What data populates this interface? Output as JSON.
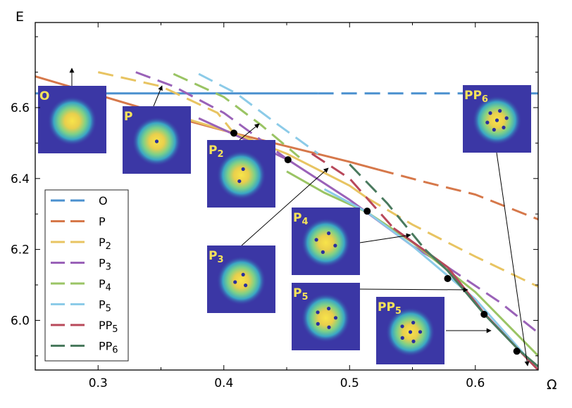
{
  "chart_data": {
    "type": "line",
    "xlabel": "Ω",
    "ylabel": "E",
    "xlim": [
      0.25,
      0.65
    ],
    "ylim": [
      5.86,
      6.84
    ],
    "xticks": [
      "0.3",
      "0.4",
      "0.5",
      "0.6"
    ],
    "xtick_values": [
      0.3,
      0.4,
      0.5,
      0.6
    ],
    "yticks": [
      "6.0",
      "6.2",
      "6.4",
      "6.6"
    ],
    "ytick_values": [
      6.0,
      6.2,
      6.4,
      6.6
    ],
    "legend_position": "lower-left",
    "series": [
      {
        "id": "O",
        "label": "O",
        "sub": "",
        "color": "#4a90cf",
        "solid": [
          [
            0.25,
            6.64
          ],
          [
            0.475,
            6.64
          ]
        ],
        "dashed": [
          [
            0.475,
            6.64
          ],
          [
            0.65,
            6.64
          ]
        ]
      },
      {
        "id": "P",
        "label": "P",
        "sub": "",
        "color": "#d6784a",
        "solid": [
          [
            0.25,
            6.688
          ],
          [
            0.296,
            6.64
          ],
          [
            0.35,
            6.583
          ],
          [
            0.408,
            6.528
          ],
          [
            0.45,
            6.491
          ],
          [
            0.5,
            6.447
          ],
          [
            0.523,
            6.425
          ]
        ],
        "dashed": [
          [
            0.523,
            6.425
          ],
          [
            0.56,
            6.39
          ],
          [
            0.6,
            6.355
          ],
          [
            0.65,
            6.285
          ]
        ]
      },
      {
        "id": "P2",
        "label": "P",
        "sub": "2",
        "color": "#e8c462",
        "solid": [
          [
            0.35,
            6.59
          ],
          [
            0.408,
            6.528
          ],
          [
            0.45,
            6.47
          ],
          [
            0.5,
            6.38
          ],
          [
            0.514,
            6.345
          ]
        ],
        "dashed": [
          [
            0.3,
            6.7
          ],
          [
            0.35,
            6.66
          ],
          [
            0.395,
            6.585
          ],
          [
            0.408,
            6.528
          ]
        ],
        "dashed2": [
          [
            0.514,
            6.345
          ],
          [
            0.55,
            6.27
          ],
          [
            0.6,
            6.18
          ],
          [
            0.65,
            6.095
          ]
        ]
      },
      {
        "id": "P3",
        "label": "P",
        "sub": "3",
        "color": "#9a62b8",
        "solid": [
          [
            0.38,
            6.57
          ],
          [
            0.42,
            6.505
          ],
          [
            0.451,
            6.453
          ],
          [
            0.5,
            6.34
          ],
          [
            0.55,
            6.21
          ],
          [
            0.578,
            6.15
          ]
        ],
        "dashed": [
          [
            0.33,
            6.7
          ],
          [
            0.36,
            6.66
          ],
          [
            0.4,
            6.585
          ],
          [
            0.451,
            6.453
          ]
        ],
        "dashed2": [
          [
            0.578,
            6.15
          ],
          [
            0.62,
            6.05
          ],
          [
            0.65,
            5.965
          ]
        ]
      },
      {
        "id": "P4",
        "label": "P",
        "sub": "4",
        "color": "#9ac464",
        "solid": [
          [
            0.45,
            6.42
          ],
          [
            0.48,
            6.36
          ],
          [
            0.514,
            6.305
          ],
          [
            0.55,
            6.22
          ],
          [
            0.6,
            6.08
          ],
          [
            0.65,
            5.9
          ]
        ],
        "dashed": [
          [
            0.36,
            6.695
          ],
          [
            0.4,
            6.63
          ],
          [
            0.43,
            6.55
          ],
          [
            0.46,
            6.46
          ]
        ]
      },
      {
        "id": "P5",
        "label": "P",
        "sub": "5",
        "color": "#8ccbe8",
        "solid": [
          [
            0.48,
            6.37
          ],
          [
            0.514,
            6.305
          ],
          [
            0.55,
            6.21
          ],
          [
            0.6,
            6.06
          ],
          [
            0.65,
            5.86
          ]
        ],
        "dashed": [
          [
            0.38,
            6.695
          ],
          [
            0.41,
            6.64
          ],
          [
            0.44,
            6.56
          ],
          [
            0.475,
            6.47
          ]
        ]
      },
      {
        "id": "PP5",
        "label": "PP",
        "sub": "5",
        "color": "#b8485a",
        "solid": [
          [
            0.535,
            6.26
          ],
          [
            0.578,
            6.15
          ],
          [
            0.607,
            6.02
          ],
          [
            0.635,
            5.915
          ],
          [
            0.65,
            5.86
          ]
        ],
        "dashed": [
          [
            0.47,
            6.47
          ],
          [
            0.5,
            6.4
          ],
          [
            0.535,
            6.26
          ]
        ]
      },
      {
        "id": "PP6",
        "label": "PP",
        "sub": "6",
        "color": "#4a7a5e",
        "solid": [
          [
            0.56,
            6.2
          ],
          [
            0.578,
            6.14
          ],
          [
            0.607,
            6.018
          ],
          [
            0.635,
            5.915
          ],
          [
            0.65,
            5.87
          ]
        ],
        "dashed": [
          [
            0.5,
            6.44
          ],
          [
            0.53,
            6.33
          ],
          [
            0.56,
            6.2
          ]
        ]
      }
    ],
    "points": [
      {
        "x": 0.296,
        "y": 6.64
      },
      {
        "x": 0.408,
        "y": 6.528
      },
      {
        "x": 0.451,
        "y": 6.453
      },
      {
        "x": 0.514,
        "y": 6.308
      },
      {
        "x": 0.578,
        "y": 6.118
      },
      {
        "x": 0.607,
        "y": 6.017
      },
      {
        "x": 0.633,
        "y": 5.913
      }
    ],
    "insets": [
      {
        "id": "O",
        "label": "O",
        "sub": "",
        "vortices": 0
      },
      {
        "id": "P",
        "label": "P",
        "sub": "",
        "vortices": 1
      },
      {
        "id": "P2",
        "label": "P",
        "sub": "2",
        "vortices": 2
      },
      {
        "id": "P3",
        "label": "P",
        "sub": "3",
        "vortices": 3
      },
      {
        "id": "P4",
        "label": "P",
        "sub": "4",
        "vortices": 4
      },
      {
        "id": "P5",
        "label": "P",
        "sub": "5",
        "vortices": 5
      },
      {
        "id": "PP5",
        "label": "PP",
        "sub": "5",
        "vortices": 5
      },
      {
        "id": "PP6",
        "label": "PP",
        "sub": "6",
        "vortices": 6
      }
    ]
  }
}
